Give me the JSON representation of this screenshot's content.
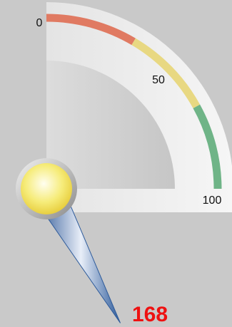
{
  "chart_data": {
    "type": "gauge",
    "min": 0,
    "max": 100,
    "value": 168,
    "ticks": [
      0,
      50,
      100
    ],
    "bands": [
      {
        "from": 0,
        "to": 34,
        "color": "#e07a62"
      },
      {
        "from": 34,
        "to": 68,
        "color": "#e8d882"
      },
      {
        "from": 68,
        "to": 100,
        "color": "#6fb487"
      }
    ],
    "value_color": "#ee1111",
    "needle_color": "#2d5a9a"
  }
}
